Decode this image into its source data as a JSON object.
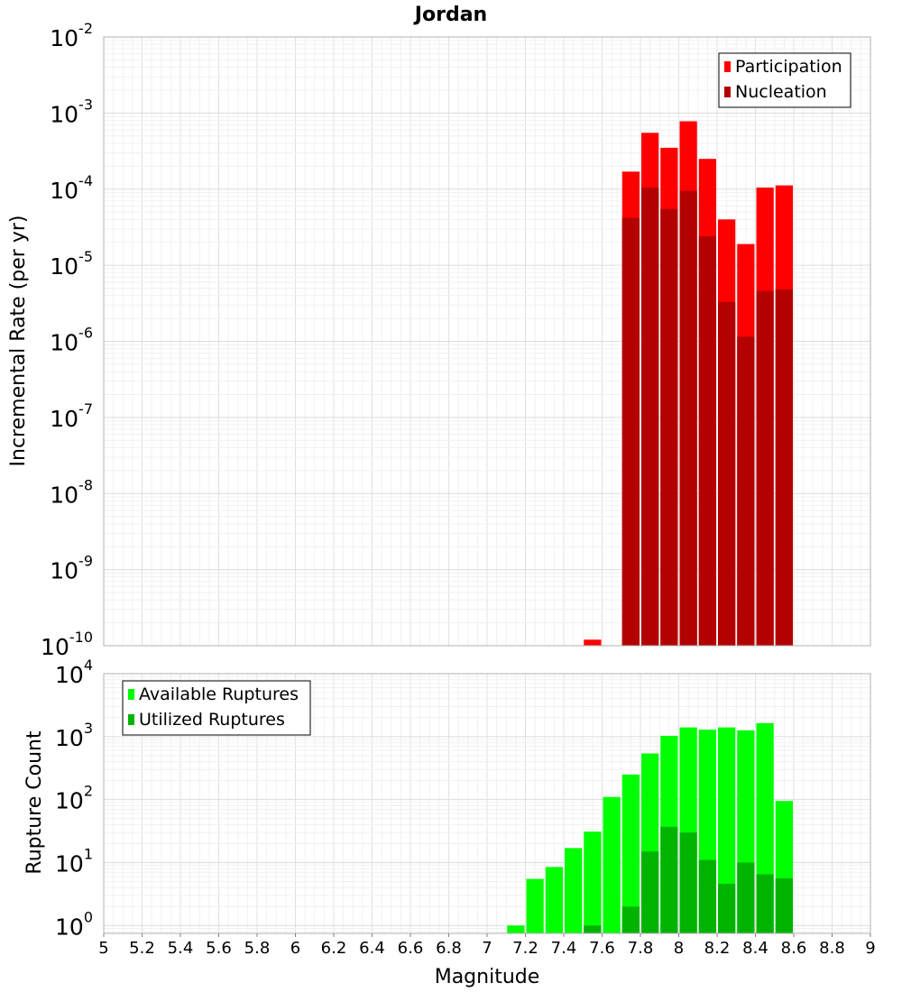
{
  "chart_data": [
    {
      "type": "bar",
      "title": "Jordan",
      "ylabel": "Incremental Rate (per yr)",
      "xlabel": "",
      "yscale": "log",
      "ylim": [
        1e-10,
        0.01
      ],
      "xlim": [
        5,
        9
      ],
      "grid": true,
      "legend_position": "top-right",
      "y_ticks": [
        {
          "base": "10",
          "exp": "-10",
          "value": 1e-10
        },
        {
          "base": "10",
          "exp": "-9",
          "value": 1e-09
        },
        {
          "base": "10",
          "exp": "-8",
          "value": 1e-08
        },
        {
          "base": "10",
          "exp": "-7",
          "value": 1e-07
        },
        {
          "base": "10",
          "exp": "-6",
          "value": 1e-06
        },
        {
          "base": "10",
          "exp": "-5",
          "value": 1e-05
        },
        {
          "base": "10",
          "exp": "-4",
          "value": 0.0001
        },
        {
          "base": "10",
          "exp": "-3",
          "value": 0.001
        },
        {
          "base": "10",
          "exp": "-2",
          "value": 0.01
        }
      ],
      "bar_width": 0.1,
      "series": [
        {
          "name": "Participation",
          "color": "#ff0000",
          "x": [
            7.55,
            7.75,
            7.85,
            7.95,
            8.05,
            8.15,
            8.25,
            8.35,
            8.45,
            8.55
          ],
          "values": [
            1.2e-10,
            0.00017,
            0.00055,
            0.00035,
            0.00078,
            0.00025,
            4e-05,
            1.9e-05,
            0.000105,
            0.000112
          ]
        },
        {
          "name": "Nucleation",
          "color": "#b30000",
          "x": [
            7.75,
            7.85,
            7.95,
            8.05,
            8.15,
            8.25,
            8.35,
            8.45,
            8.55
          ],
          "values": [
            4.2e-05,
            0.000105,
            5.5e-05,
            9.5e-05,
            2.4e-05,
            3.3e-06,
            1.15e-06,
            4.6e-06,
            4.8e-06
          ]
        }
      ]
    },
    {
      "type": "bar",
      "title": "",
      "ylabel": "Rupture Count",
      "xlabel": "Magnitude",
      "yscale": "log",
      "ylim": [
        0.75,
        10000
      ],
      "xlim": [
        5,
        9
      ],
      "grid": true,
      "legend_position": "top-left",
      "x_ticks": [
        "5",
        "5.2",
        "5.4",
        "5.6",
        "5.8",
        "6",
        "6.2",
        "6.4",
        "6.6",
        "6.8",
        "7",
        "7.2",
        "7.4",
        "7.6",
        "7.8",
        "8",
        "8.2",
        "8.4",
        "8.6",
        "8.8",
        "9"
      ],
      "y_ticks": [
        {
          "base": "10",
          "exp": "0",
          "value": 1
        },
        {
          "base": "10",
          "exp": "1",
          "value": 10
        },
        {
          "base": "10",
          "exp": "2",
          "value": 100
        },
        {
          "base": "10",
          "exp": "3",
          "value": 1000
        },
        {
          "base": "10",
          "exp": "4",
          "value": 10000
        }
      ],
      "bar_width": 0.1,
      "series": [
        {
          "name": "Available Ruptures",
          "color": "#00ff00",
          "x": [
            7.15,
            7.25,
            7.35,
            7.45,
            7.55,
            7.65,
            7.75,
            7.85,
            7.95,
            8.05,
            8.15,
            8.25,
            8.35,
            8.45,
            8.55
          ],
          "values": [
            1,
            5.5,
            8.5,
            17,
            31,
            110,
            250,
            540,
            1030,
            1400,
            1290,
            1400,
            1260,
            1640,
            95
          ]
        },
        {
          "name": "Utilized Ruptures",
          "color": "#00b300",
          "x": [
            7.55,
            7.75,
            7.85,
            7.95,
            8.05,
            8.15,
            8.25,
            8.35,
            8.45,
            8.55
          ],
          "values": [
            1,
            2,
            15,
            37,
            30,
            11,
            4.6,
            10,
            6.5,
            5.6
          ]
        }
      ]
    }
  ]
}
